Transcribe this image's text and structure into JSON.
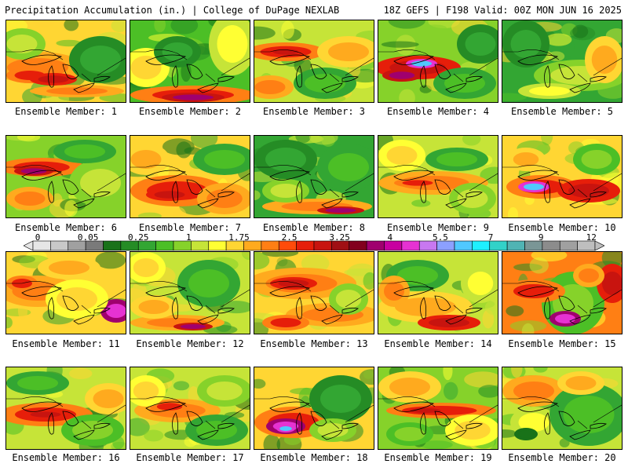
{
  "header": {
    "title": "Precipitation Accumulation (in.) | College of DuPage NEXLAB",
    "run_info": "18Z GEFS | F198 Valid: 00Z MON JUN 16 2025"
  },
  "colorbar": {
    "labels": [
      "0",
      "0.05",
      "0.25",
      "1",
      "1.75",
      "2.5",
      "3.25",
      "4",
      "5.5",
      "7",
      "9",
      "12"
    ],
    "colors": [
      "#e6e6e6",
      "#c8c8c8",
      "#a0a0a0",
      "#7a7a7a",
      "#197219",
      "#258c25",
      "#33a633",
      "#4cbf26",
      "#86d22a",
      "#c6e438",
      "#ffff33",
      "#ffd633",
      "#ffaa1e",
      "#ff7f14",
      "#ff4b0a",
      "#e61e0a",
      "#c8140f",
      "#a00f14",
      "#82001e",
      "#a0006e",
      "#c800a0",
      "#e632d2",
      "#c878f0",
      "#8ca0ff",
      "#50c8ff",
      "#1ef0ff",
      "#32d2c8",
      "#50b4b4",
      "#7a9696",
      "#8c8c8c",
      "#a0a0a0",
      "#bebebe"
    ]
  },
  "members": [
    {
      "label": "Ensemble Member: 1"
    },
    {
      "label": "Ensemble Member: 2"
    },
    {
      "label": "Ensemble Member: 3"
    },
    {
      "label": "Ensemble Member: 4"
    },
    {
      "label": "Ensemble Member: 5"
    },
    {
      "label": "Ensemble Member: 6"
    },
    {
      "label": "Ensemble Member: 7"
    },
    {
      "label": "Ensemble Member: 8"
    },
    {
      "label": "Ensemble Member: 9"
    },
    {
      "label": "Ensemble Member: 10"
    },
    {
      "label": "Ensemble Member: 11"
    },
    {
      "label": "Ensemble Member: 12"
    },
    {
      "label": "Ensemble Member: 13"
    },
    {
      "label": "Ensemble Member: 14"
    },
    {
      "label": "Ensemble Member: 15"
    },
    {
      "label": "Ensemble Member: 16"
    },
    {
      "label": "Ensemble Member: 17"
    },
    {
      "label": "Ensemble Member: 18"
    },
    {
      "label": "Ensemble Member: 19"
    },
    {
      "label": "Ensemble Member: 20"
    }
  ]
}
